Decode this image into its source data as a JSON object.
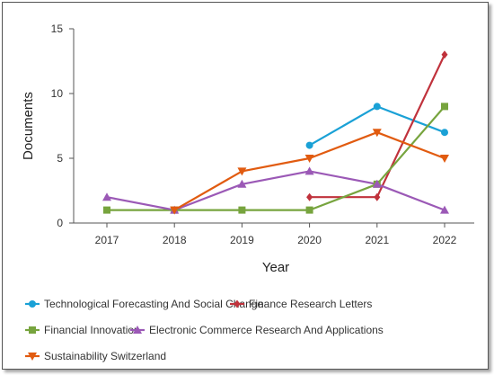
{
  "chart_data": {
    "type": "line",
    "title": "",
    "xlabel": "Year",
    "ylabel": "Documents",
    "x": [
      "2017",
      "2018",
      "2019",
      "2020",
      "2021",
      "2022"
    ],
    "yticks": [
      "0",
      "5",
      "10",
      "15"
    ],
    "ylim": [
      0,
      15
    ],
    "legend_position": "bottom",
    "series": [
      {
        "name": "Technological Forecasting And Social Change",
        "color": "#1aa1d6",
        "marker": "circle",
        "values": [
          null,
          null,
          null,
          6,
          9,
          7
        ]
      },
      {
        "name": "Finance Research Letters",
        "color": "#c0323c",
        "marker": "diamond",
        "values": [
          null,
          null,
          null,
          2,
          2,
          13
        ]
      },
      {
        "name": "Financial Innovation",
        "color": "#77a43e",
        "marker": "square",
        "values": [
          1,
          1,
          1,
          1,
          3,
          9
        ]
      },
      {
        "name": "Electronic Commerce Research And Applications",
        "color": "#9b59b6",
        "marker": "triangle-up",
        "values": [
          2,
          1,
          3,
          4,
          3,
          1
        ]
      },
      {
        "name": "Sustainability Switzerland",
        "color": "#e15b10",
        "marker": "triangle-down",
        "values": [
          null,
          1,
          4,
          5,
          7,
          5
        ]
      }
    ]
  }
}
